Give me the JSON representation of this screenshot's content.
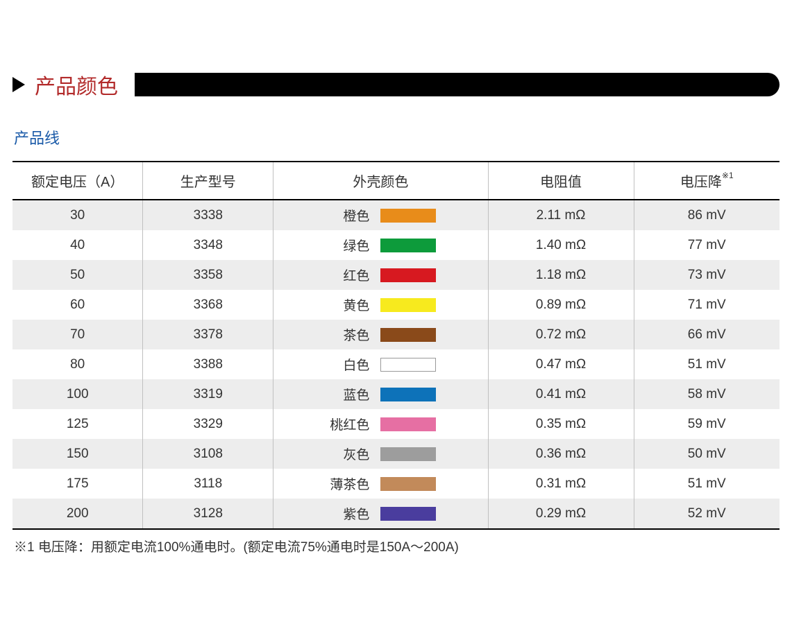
{
  "section_title": "产品颜色",
  "subtitle": "产品线",
  "columns": {
    "voltage": "额定电压（A）",
    "model": "生产型号",
    "color": "外壳颜色",
    "resistance": "电阻值",
    "voltage_drop": "电压降",
    "voltage_drop_sup": "※1"
  },
  "rows": [
    {
      "voltage": "30",
      "model": "3338",
      "color_name": "橙色",
      "color_hex": "#e88c1a",
      "has_border": false,
      "resistance": "2.11 mΩ",
      "voltage_drop": "86 mV"
    },
    {
      "voltage": "40",
      "model": "3348",
      "color_name": "绿色",
      "color_hex": "#0d9b3b",
      "has_border": false,
      "resistance": "1.40 mΩ",
      "voltage_drop": "77 mV"
    },
    {
      "voltage": "50",
      "model": "3358",
      "color_name": "红色",
      "color_hex": "#d71920",
      "has_border": false,
      "resistance": "1.18 mΩ",
      "voltage_drop": "73 mV"
    },
    {
      "voltage": "60",
      "model": "3368",
      "color_name": "黄色",
      "color_hex": "#f7ea1e",
      "has_border": false,
      "resistance": "0.89 mΩ",
      "voltage_drop": "71 mV"
    },
    {
      "voltage": "70",
      "model": "3378",
      "color_name": "茶色",
      "color_hex": "#8a4a1a",
      "has_border": false,
      "resistance": "0.72 mΩ",
      "voltage_drop": "66 mV"
    },
    {
      "voltage": "80",
      "model": "3388",
      "color_name": "白色",
      "color_hex": "#ffffff",
      "has_border": true,
      "resistance": "0.47 mΩ",
      "voltage_drop": "51 mV"
    },
    {
      "voltage": "100",
      "model": "3319",
      "color_name": "蓝色",
      "color_hex": "#0d72b9",
      "has_border": false,
      "resistance": "0.41 mΩ",
      "voltage_drop": "58 mV"
    },
    {
      "voltage": "125",
      "model": "3329",
      "color_name": "桃红色",
      "color_hex": "#e66fa3",
      "has_border": false,
      "resistance": "0.35 mΩ",
      "voltage_drop": "59 mV"
    },
    {
      "voltage": "150",
      "model": "3108",
      "color_name": "灰色",
      "color_hex": "#9d9d9d",
      "has_border": false,
      "resistance": "0.36 mΩ",
      "voltage_drop": "50 mV"
    },
    {
      "voltage": "175",
      "model": "3118",
      "color_name": "薄茶色",
      "color_hex": "#c28a5a",
      "has_border": false,
      "resistance": "0.31 mΩ",
      "voltage_drop": "51 mV"
    },
    {
      "voltage": "200",
      "model": "3128",
      "color_name": "紫色",
      "color_hex": "#4a3d9e",
      "has_border": false,
      "resistance": "0.29 mΩ",
      "voltage_drop": "52 mV"
    }
  ],
  "footnote": "※1 电压降：用额定电流100%通电时。(额定电流75%通电时是150A～200A)",
  "styling": {
    "header_border_color": "#000000",
    "cell_border_color": "#c0c0c0",
    "row_odd_bg": "#ededed",
    "row_even_bg": "#ffffff",
    "section_title_color": "#b22a2a",
    "subtitle_color": "#1a5aa8",
    "text_color": "#333333",
    "black_bar_color": "#000000",
    "triangle_color": "#000000",
    "body_font_size": 19,
    "header_font_size": 20,
    "title_font_size": 30,
    "subtitle_font_size": 22,
    "swatch_width": 80,
    "swatch_height": 20
  }
}
